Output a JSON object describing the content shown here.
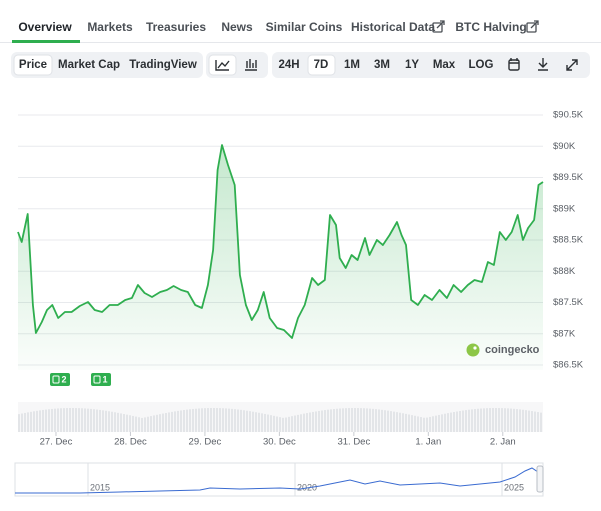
{
  "tabs": [
    "Overview",
    "Markets",
    "Treasuries",
    "News",
    "Similar Coins",
    "Historical Data",
    "BTC Halving"
  ],
  "chart_types": [
    "Price",
    "Market Cap",
    "TradingView"
  ],
  "ranges": [
    "24H",
    "7D",
    "1M",
    "3M",
    "1Y",
    "Max",
    "LOG"
  ],
  "event_markers": [
    2,
    1
  ],
  "watermark": "coingecko",
  "navigator_labels": [
    "2015",
    "2020",
    "2025"
  ],
  "chart_data": {
    "type": "area",
    "color": "#2fae4f",
    "grid": true,
    "ylim": [
      86500,
      90500
    ],
    "yticks": [
      {
        "value": 86500,
        "label": "$86.5K"
      },
      {
        "value": 87000,
        "label": "$87K"
      },
      {
        "value": 87500,
        "label": "$87.5K"
      },
      {
        "value": 88000,
        "label": "$88K"
      },
      {
        "value": 88500,
        "label": "$88.5K"
      },
      {
        "value": 89000,
        "label": "$89K"
      },
      {
        "value": 89500,
        "label": "$89.5K"
      },
      {
        "value": 90000,
        "label": "$90K"
      },
      {
        "value": 90500,
        "label": "$90.5K"
      }
    ],
    "xlim": [
      0.49,
      7.54
    ],
    "xticks": [
      {
        "value": 1,
        "label": "27. Dec"
      },
      {
        "value": 2,
        "label": "28. Dec"
      },
      {
        "value": 3,
        "label": "29. Dec"
      },
      {
        "value": 4,
        "label": "30. Dec"
      },
      {
        "value": 5,
        "label": "31. Dec"
      },
      {
        "value": 6,
        "label": "1. Jan"
      },
      {
        "value": 7,
        "label": "2. Jan"
      }
    ],
    "x": [
      0.49,
      0.54,
      0.62,
      0.69,
      0.73,
      0.81,
      0.88,
      0.95,
      1.03,
      1.12,
      1.21,
      1.32,
      1.43,
      1.52,
      1.62,
      1.72,
      1.83,
      1.93,
      2.02,
      2.1,
      2.19,
      2.29,
      2.4,
      2.49,
      2.58,
      2.68,
      2.77,
      2.87,
      2.96,
      3.04,
      3.11,
      3.17,
      3.23,
      3.31,
      3.4,
      3.47,
      3.55,
      3.63,
      3.71,
      3.79,
      3.87,
      3.97,
      4.06,
      4.17,
      4.25,
      4.34,
      4.44,
      4.52,
      4.61,
      4.68,
      4.76,
      4.81,
      4.89,
      4.97,
      5.05,
      5.15,
      5.21,
      5.31,
      5.39,
      5.48,
      5.58,
      5.64,
      5.7,
      5.77,
      5.86,
      5.95,
      6.05,
      6.15,
      6.25,
      6.34,
      6.44,
      6.53,
      6.62,
      6.72,
      6.8,
      6.88,
      6.96,
      7.04,
      7.12,
      7.2,
      7.27,
      7.34,
      7.42,
      7.48,
      7.54
    ],
    "values": [
      88628,
      88468,
      88916,
      87460,
      87012,
      87188,
      87380,
      87460,
      87252,
      87348,
      87348,
      87444,
      87508,
      87380,
      87348,
      87460,
      87460,
      87540,
      87572,
      87780,
      87652,
      87588,
      87668,
      87700,
      87764,
      87700,
      87668,
      87460,
      87412,
      87780,
      88340,
      89620,
      90020,
      89700,
      89380,
      87940,
      87460,
      87220,
      87380,
      87668,
      87252,
      87092,
      87060,
      86932,
      87252,
      87460,
      87892,
      87780,
      87860,
      88900,
      88740,
      88212,
      88052,
      88260,
      88180,
      88532,
      88260,
      88500,
      88420,
      88580,
      88788,
      88580,
      88420,
      87540,
      87460,
      87620,
      87540,
      87700,
      87572,
      87780,
      87668,
      87780,
      87860,
      87828,
      88148,
      88100,
      88628,
      88500,
      88628,
      88900,
      88500,
      88692,
      88820,
      89380,
      89428
    ]
  }
}
